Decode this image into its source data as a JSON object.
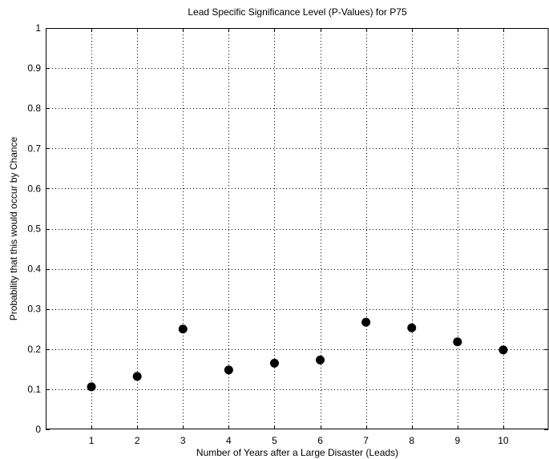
{
  "chart_data": {
    "type": "scatter",
    "title": "Lead Specific Significance Level (P-Values) for P75",
    "xlabel": "Number of Years after a Large Disaster (Leads)",
    "ylabel": "Probability that this would occur by Chance",
    "x": [
      1,
      2,
      3,
      4,
      5,
      6,
      7,
      8,
      9,
      10
    ],
    "y": [
      0.106,
      0.132,
      0.25,
      0.148,
      0.165,
      0.173,
      0.267,
      0.253,
      0.218,
      0.198
    ],
    "xlim": [
      0,
      11
    ],
    "ylim": [
      0,
      1
    ],
    "xticks": [
      1,
      2,
      3,
      4,
      5,
      6,
      7,
      8,
      9,
      10
    ],
    "yticks": [
      0,
      0.1,
      0.2,
      0.3,
      0.4,
      0.5,
      0.6,
      0.7,
      0.8,
      0.9,
      1
    ],
    "ytick_labels": [
      "0",
      "0.1",
      "0.2",
      "0.3",
      "0.4",
      "0.5",
      "0.6",
      "0.7",
      "0.8",
      "0.9",
      "1"
    ],
    "grid": true,
    "marker_color": "#000000"
  }
}
